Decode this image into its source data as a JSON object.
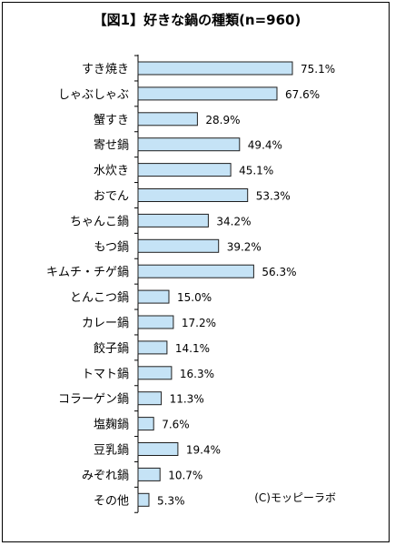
{
  "chart_data": {
    "type": "bar",
    "orientation": "horizontal",
    "title": "【図1】好きな鍋の種類(n=960)",
    "categories": [
      "すき焼き",
      "しゃぶしゃぶ",
      "蟹すき",
      "寄せ鍋",
      "水炊き",
      "おでん",
      "ちゃんこ鍋",
      "もつ鍋",
      "キムチ・チゲ鍋",
      "とんこつ鍋",
      "カレー鍋",
      "餃子鍋",
      "トマト鍋",
      "コラーゲン鍋",
      "塩麹鍋",
      "豆乳鍋",
      "みぞれ鍋",
      "その他"
    ],
    "values": [
      75.1,
      67.6,
      28.9,
      49.4,
      45.1,
      53.3,
      34.2,
      39.2,
      56.3,
      15.0,
      17.2,
      14.1,
      16.3,
      11.3,
      7.6,
      19.4,
      10.7,
      5.3
    ],
    "value_labels": [
      "75.1%",
      "67.6%",
      "28.9%",
      "49.4%",
      "45.1%",
      "53.3%",
      "34.2%",
      "39.2%",
      "56.3%",
      "15.0%",
      "17.2%",
      "14.1%",
      "16.3%",
      "11.3%",
      "7.6%",
      "19.4%",
      "10.7%",
      "5.3%"
    ],
    "xlim": [
      0,
      100
    ],
    "grid": false,
    "legend": "none",
    "credit": "(C)モッピーラボ"
  },
  "colors": {
    "bar_fill": "#C5E3F6",
    "bar_stroke": "#1F1F1F",
    "frame": "#000000",
    "axis": "#000000"
  }
}
